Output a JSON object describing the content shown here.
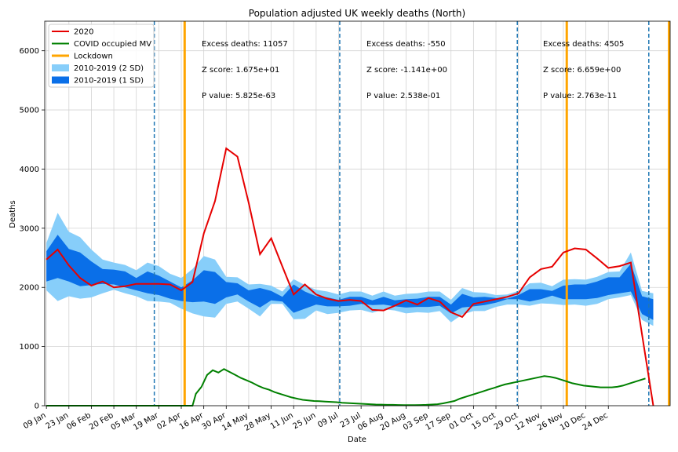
{
  "chart_data": {
    "type": "line",
    "title": "Population adjusted UK weekly deaths (North)",
    "xlabel": "Date",
    "ylabel": "Deaths",
    "ylim": [
      0,
      6500
    ],
    "yticks": [
      0,
      1000,
      2000,
      3000,
      4000,
      5000,
      6000
    ],
    "xtick_labels": [
      "09 Jan",
      "23 Jan",
      "06 Feb",
      "20 Feb",
      "05 Mar",
      "19 Mar",
      "02 Apr",
      "16 Apr",
      "30 Apr",
      "14 May",
      "28 May",
      "11 Jun",
      "25 Jun",
      "09 Jul",
      "23 Jul",
      "06 Aug",
      "20 Aug",
      "03 Sep",
      "17 Sep",
      "01 Oct",
      "15 Oct",
      "29 Oct",
      "12 Nov",
      "26 Nov",
      "10 Dec",
      "24 Dec"
    ],
    "xlim_weeks": [
      -0.15,
      55.5
    ],
    "grid": true,
    "legend_position": "upper-left",
    "legend": [
      {
        "label": "2020",
        "color": "#e60000",
        "kind": "line"
      },
      {
        "label": "COVID occupied MV",
        "color": "#008000",
        "kind": "line"
      },
      {
        "label": "Lockdown",
        "color": "#ffa500",
        "kind": "line"
      },
      {
        "label": "2010-2019 (2 SD)",
        "color": "#87cefa",
        "kind": "patch"
      },
      {
        "label": "2010-2019 (1 SD)",
        "color": "#0a6fe8",
        "kind": "patch"
      }
    ],
    "series_2020": [
      2470,
      2640,
      2370,
      2160,
      2030,
      2100,
      2000,
      2020,
      2060,
      2060,
      2060,
      2050,
      1950,
      2090,
      2910,
      3460,
      4350,
      4210,
      3430,
      2560,
      2830,
      2350,
      1880,
      2050,
      1880,
      1810,
      1770,
      1790,
      1770,
      1620,
      1610,
      1690,
      1780,
      1710,
      1820,
      1760,
      1580,
      1500,
      1720,
      1760,
      1800,
      1840,
      1900,
      2170,
      2310,
      2350,
      2590,
      2660,
      2640,
      2490,
      2330,
      2360,
      2420,
      1200,
      0
    ],
    "sd2_upper": [
      2750,
      3260,
      2940,
      2850,
      2640,
      2470,
      2420,
      2380,
      2290,
      2420,
      2360,
      2230,
      2160,
      2310,
      2530,
      2470,
      2180,
      2170,
      2050,
      2060,
      2030,
      1930,
      2140,
      2040,
      1960,
      1930,
      1880,
      1930,
      1930,
      1860,
      1930,
      1860,
      1890,
      1900,
      1930,
      1930,
      1790,
      1990,
      1920,
      1910,
      1870,
      1880,
      1940,
      2070,
      2080,
      2020,
      2130,
      2140,
      2130,
      2180,
      2260,
      2270,
      2590,
      1940,
      1900
    ],
    "sd1_upper": [
      2610,
      2890,
      2650,
      2590,
      2440,
      2310,
      2300,
      2270,
      2160,
      2270,
      2200,
      2100,
      2000,
      2120,
      2290,
      2260,
      2090,
      2070,
      1950,
      1990,
      1940,
      1840,
      2050,
      1930,
      1850,
      1830,
      1790,
      1840,
      1840,
      1780,
      1840,
      1780,
      1800,
      1810,
      1840,
      1840,
      1710,
      1890,
      1830,
      1840,
      1820,
      1810,
      1870,
      1970,
      1970,
      1940,
      2030,
      2050,
      2050,
      2100,
      2170,
      2170,
      2400,
      1850,
      1800
    ],
    "sd1_lower": [
      2100,
      2160,
      2100,
      2020,
      2040,
      2060,
      2050,
      2000,
      1950,
      1900,
      1870,
      1810,
      1770,
      1750,
      1760,
      1720,
      1830,
      1880,
      1760,
      1660,
      1780,
      1760,
      1570,
      1640,
      1710,
      1680,
      1680,
      1690,
      1720,
      1700,
      1710,
      1680,
      1660,
      1670,
      1670,
      1690,
      1560,
      1660,
      1680,
      1700,
      1740,
      1800,
      1800,
      1760,
      1800,
      1860,
      1800,
      1800,
      1800,
      1820,
      1870,
      1900,
      1930,
      1550,
      1450
    ],
    "sd2_lower": [
      1950,
      1770,
      1850,
      1810,
      1830,
      1900,
      1960,
      1900,
      1850,
      1770,
      1760,
      1740,
      1640,
      1560,
      1510,
      1490,
      1720,
      1760,
      1640,
      1510,
      1720,
      1720,
      1460,
      1470,
      1610,
      1550,
      1570,
      1610,
      1620,
      1570,
      1630,
      1610,
      1560,
      1580,
      1570,
      1600,
      1410,
      1540,
      1600,
      1600,
      1670,
      1710,
      1710,
      1690,
      1730,
      1720,
      1700,
      1710,
      1690,
      1720,
      1800,
      1830,
      1870,
      1450,
      1350
    ],
    "covid_mv": [
      [
        0,
        0
      ],
      [
        13.0,
        0
      ],
      [
        13.3,
        200
      ],
      [
        13.8,
        320
      ],
      [
        14.3,
        520
      ],
      [
        14.8,
        600
      ],
      [
        15.3,
        560
      ],
      [
        15.8,
        620
      ],
      [
        16.3,
        570
      ],
      [
        16.8,
        520
      ],
      [
        17.3,
        470
      ],
      [
        17.8,
        430
      ],
      [
        18.3,
        390
      ],
      [
        18.8,
        340
      ],
      [
        19.3,
        300
      ],
      [
        19.8,
        270
      ],
      [
        20.3,
        230
      ],
      [
        20.8,
        200
      ],
      [
        21.3,
        170
      ],
      [
        21.8,
        140
      ],
      [
        22.3,
        120
      ],
      [
        22.8,
        100
      ],
      [
        23.3,
        90
      ],
      [
        23.8,
        80
      ],
      [
        24.3,
        75
      ],
      [
        24.8,
        70
      ],
      [
        25.3,
        65
      ],
      [
        25.8,
        60
      ],
      [
        26.3,
        50
      ],
      [
        26.8,
        45
      ],
      [
        27.3,
        40
      ],
      [
        27.8,
        35
      ],
      [
        28.3,
        30
      ],
      [
        28.8,
        25
      ],
      [
        29.3,
        20
      ],
      [
        29.8,
        18
      ],
      [
        30.3,
        15
      ],
      [
        30.8,
        14
      ],
      [
        31.3,
        12
      ],
      [
        31.8,
        10
      ],
      [
        32.3,
        9
      ],
      [
        32.8,
        10
      ],
      [
        33.3,
        12
      ],
      [
        33.8,
        15
      ],
      [
        34.3,
        20
      ],
      [
        34.8,
        25
      ],
      [
        35.3,
        40
      ],
      [
        35.8,
        60
      ],
      [
        36.3,
        80
      ],
      [
        36.8,
        120
      ],
      [
        37.3,
        150
      ],
      [
        37.8,
        180
      ],
      [
        38.3,
        210
      ],
      [
        38.8,
        240
      ],
      [
        39.3,
        270
      ],
      [
        39.8,
        300
      ],
      [
        40.3,
        330
      ],
      [
        40.8,
        360
      ],
      [
        41.3,
        380
      ],
      [
        41.8,
        400
      ],
      [
        42.3,
        420
      ],
      [
        42.8,
        440
      ],
      [
        43.3,
        460
      ],
      [
        43.8,
        480
      ],
      [
        44.3,
        500
      ],
      [
        44.8,
        490
      ],
      [
        45.3,
        470
      ],
      [
        45.8,
        440
      ],
      [
        46.3,
        410
      ],
      [
        46.8,
        380
      ],
      [
        47.3,
        360
      ],
      [
        47.8,
        340
      ],
      [
        48.3,
        330
      ],
      [
        48.8,
        320
      ],
      [
        49.3,
        310
      ],
      [
        49.8,
        310
      ],
      [
        50.3,
        310
      ],
      [
        50.8,
        320
      ],
      [
        51.3,
        340
      ],
      [
        51.8,
        370
      ],
      [
        52.3,
        400
      ],
      [
        52.8,
        430
      ],
      [
        53.3,
        460
      ]
    ],
    "lockdown_weeks": [
      12.3,
      46.3,
      55.4
    ],
    "dashed_weeks": [
      9.6,
      26.1,
      41.9,
      53.6
    ],
    "annotations": [
      {
        "excess": "Excess deaths: 11057",
        "z": "Z score: 1.675e+01",
        "p": "P value: 5.825e-63"
      },
      {
        "excess": "Excess deaths: -550",
        "z": "Z score: -1.141e+00",
        "p": "P value: 2.538e-01"
      },
      {
        "excess": "Excess deaths: 4505",
        "z": "Z score: 6.659e+00",
        "p": "P value: 2.763e-11"
      }
    ]
  }
}
